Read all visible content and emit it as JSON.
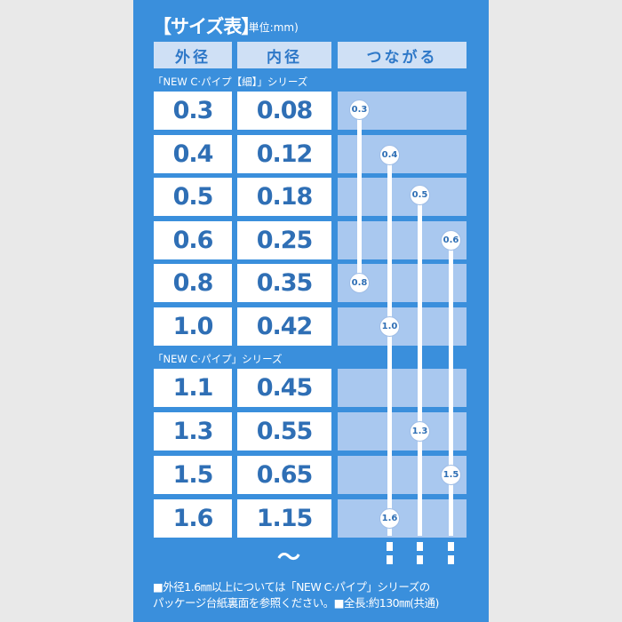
{
  "title": "【サイズ表】",
  "unit": "(単位:mm)",
  "headers": [
    "外径",
    "内径",
    "つながる"
  ],
  "series": [
    {
      "label": "「NEW C·パイプ【細】」シリーズ",
      "rows": [
        {
          "outer": "0.3",
          "inner": "0.08"
        },
        {
          "outer": "0.4",
          "inner": "0.12"
        },
        {
          "outer": "0.5",
          "inner": "0.18"
        },
        {
          "outer": "0.6",
          "inner": "0.25"
        },
        {
          "outer": "0.8",
          "inner": "0.35"
        },
        {
          "outer": "1.0",
          "inner": "0.42"
        }
      ]
    },
    {
      "label": "「NEW C·パイプ」シリーズ",
      "rows": [
        {
          "outer": "1.1",
          "inner": "0.45"
        },
        {
          "outer": "1.3",
          "inner": "0.55"
        },
        {
          "outer": "1.5",
          "inner": "0.65"
        },
        {
          "outer": "1.6",
          "inner": "1.15"
        }
      ]
    }
  ],
  "connections": [
    {
      "chain": [
        "0.3",
        "0.8"
      ]
    },
    {
      "chain": [
        "0.4",
        "1.0",
        "1.6"
      ],
      "continues": true
    },
    {
      "chain": [
        "0.5",
        "1.3"
      ],
      "continues": true
    },
    {
      "chain": [
        "0.6",
        "1.5"
      ],
      "continues": true
    }
  ],
  "continuation_mark": "〜",
  "notes": [
    "■外径1.6㎜以上については「NEW C·パイプ」シリーズの",
    "パッケージ台紙裏面を参照ください。■全長:約130㎜(共通)"
  ],
  "colors": {
    "background": "#3a8fdc",
    "text": "#2f6fb5",
    "header": "#cfe0f5",
    "connector": "#a9c8ef"
  }
}
